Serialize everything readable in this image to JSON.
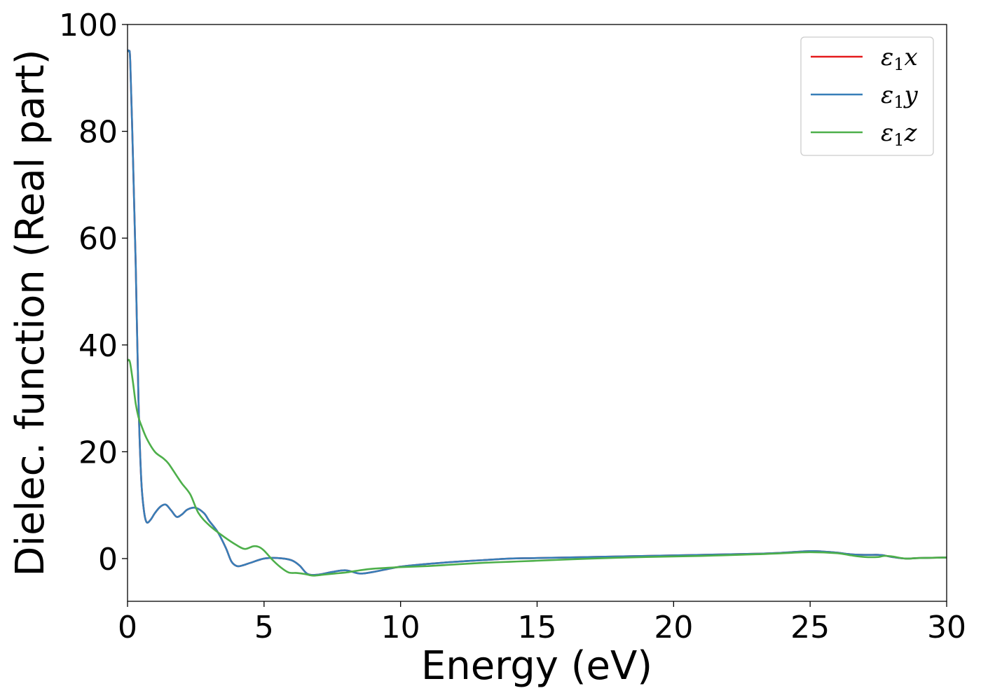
{
  "chart_data": {
    "type": "line",
    "title": "",
    "xlabel": "Energy (eV)",
    "ylabel": "Dielec. function (Real part)",
    "xlim": [
      0,
      30
    ],
    "ylim": [
      -8,
      100
    ],
    "xticks": [
      0,
      5,
      10,
      15,
      20,
      25,
      30
    ],
    "xtick_labels": [
      "0",
      "5",
      "10",
      "15",
      "20",
      "25",
      "30"
    ],
    "yticks": [
      0,
      20,
      40,
      60,
      80,
      100
    ],
    "ytick_labels": [
      "0",
      "20",
      "40",
      "60",
      "80",
      "100"
    ],
    "grid": false,
    "legend": {
      "location": "top-right",
      "entries": [
        {
          "symbol": "ε",
          "subscript": "1",
          "axis": "x",
          "color": "#e41a1c"
        },
        {
          "symbol": "ε",
          "subscript": "1",
          "axis": "y",
          "color": "#377eb8"
        },
        {
          "symbol": "ε",
          "subscript": "1",
          "axis": "z",
          "color": "#4daf4a"
        }
      ]
    },
    "series": [
      {
        "name": "ε1x",
        "color": "#e41a1c",
        "x": [
          0,
          0.05,
          0.1,
          0.2,
          0.3,
          0.4,
          0.5,
          0.6,
          0.7,
          0.85,
          1.0,
          1.2,
          1.4,
          1.6,
          1.8,
          2.0,
          2.2,
          2.5,
          2.8,
          3.0,
          3.3,
          3.6,
          3.8,
          4.0,
          4.2,
          4.5,
          5.0,
          5.5,
          6.0,
          6.3,
          6.6,
          7.0,
          7.5,
          8.0,
          8.5,
          9.0,
          10.0,
          11.0,
          12.0,
          13.0,
          14.0,
          15.0,
          17.0,
          19.0,
          21.0,
          23.0,
          24.0,
          25.0,
          25.5,
          26.0,
          26.5,
          27.0,
          27.5,
          27.7,
          28.0,
          28.5,
          29.0,
          30.0
        ],
        "y": [
          95,
          95,
          93,
          75,
          55,
          30,
          15,
          9,
          6.8,
          7.3,
          8.5,
          9.7,
          10.1,
          9.0,
          7.8,
          8.3,
          9.2,
          9.5,
          8.5,
          7.0,
          5.0,
          2.0,
          -0.5,
          -1.4,
          -1.3,
          -0.8,
          0.0,
          0.1,
          -0.3,
          -1.3,
          -2.9,
          -3.0,
          -2.5,
          -2.2,
          -2.8,
          -2.5,
          -1.5,
          -1.0,
          -0.6,
          -0.3,
          0.0,
          0.1,
          0.3,
          0.5,
          0.7,
          0.9,
          1.1,
          1.4,
          1.3,
          1.1,
          0.8,
          0.7,
          0.7,
          0.6,
          0.3,
          0.0,
          0.1,
          0.2
        ]
      },
      {
        "name": "ε1y",
        "color": "#377eb8",
        "x": [
          0,
          0.05,
          0.1,
          0.2,
          0.3,
          0.4,
          0.5,
          0.6,
          0.7,
          0.85,
          1.0,
          1.2,
          1.4,
          1.6,
          1.8,
          2.0,
          2.2,
          2.5,
          2.8,
          3.0,
          3.3,
          3.6,
          3.8,
          4.0,
          4.2,
          4.5,
          5.0,
          5.5,
          6.0,
          6.3,
          6.6,
          7.0,
          7.5,
          8.0,
          8.5,
          9.0,
          10.0,
          11.0,
          12.0,
          13.0,
          14.0,
          15.0,
          17.0,
          19.0,
          21.0,
          23.0,
          24.0,
          25.0,
          25.5,
          26.0,
          26.5,
          27.0,
          27.5,
          27.7,
          28.0,
          28.5,
          29.0,
          30.0
        ],
        "y": [
          95,
          95,
          93,
          75,
          55,
          30,
          15,
          9,
          6.8,
          7.3,
          8.5,
          9.7,
          10.1,
          9.0,
          7.8,
          8.3,
          9.2,
          9.5,
          8.5,
          7.0,
          5.0,
          2.0,
          -0.5,
          -1.4,
          -1.3,
          -0.8,
          0.0,
          0.1,
          -0.3,
          -1.3,
          -2.9,
          -3.0,
          -2.5,
          -2.2,
          -2.8,
          -2.5,
          -1.5,
          -1.0,
          -0.6,
          -0.3,
          0.0,
          0.1,
          0.3,
          0.5,
          0.7,
          0.9,
          1.1,
          1.4,
          1.3,
          1.1,
          0.8,
          0.7,
          0.7,
          0.6,
          0.3,
          0.0,
          0.1,
          0.2
        ]
      },
      {
        "name": "ε1z",
        "color": "#4daf4a",
        "x": [
          0,
          0.05,
          0.1,
          0.2,
          0.3,
          0.4,
          0.5,
          0.7,
          1.0,
          1.3,
          1.5,
          1.8,
          2.0,
          2.3,
          2.6,
          3.0,
          3.5,
          4.0,
          4.3,
          4.6,
          4.8,
          5.0,
          5.3,
          5.6,
          5.9,
          6.2,
          6.5,
          6.8,
          7.2,
          7.6,
          8.0,
          8.5,
          9.0,
          10.0,
          11.0,
          12.0,
          13.0,
          14.0,
          15.0,
          17.0,
          19.0,
          21.0,
          23.0,
          24.0,
          25.0,
          26.0,
          26.5,
          27.0,
          27.5,
          27.7,
          28.0,
          28.5,
          29.0,
          30.0
        ],
        "y": [
          37,
          37.2,
          36.5,
          33,
          29,
          26.5,
          25,
          22.5,
          20,
          18.8,
          17.8,
          15.5,
          14,
          12,
          8.5,
          6.2,
          4.2,
          2.5,
          1.8,
          2.3,
          2.2,
          1.5,
          -0.2,
          -1.6,
          -2.6,
          -2.7,
          -2.9,
          -3.2,
          -3.0,
          -2.8,
          -2.6,
          -2.2,
          -1.9,
          -1.6,
          -1.4,
          -1.1,
          -0.8,
          -0.6,
          -0.4,
          0.0,
          0.3,
          0.5,
          0.8,
          1.0,
          1.2,
          1.0,
          0.6,
          0.3,
          0.3,
          0.5,
          0.4,
          0.0,
          0.1,
          0.2
        ]
      }
    ]
  }
}
